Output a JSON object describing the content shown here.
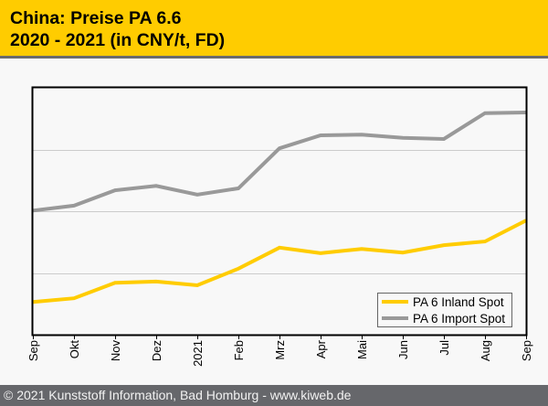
{
  "header": {
    "title_line1": "China: Preise PA 6.6",
    "title_line2": "2020 - 2021 (in CNY/t, FD)"
  },
  "footer": {
    "text": "© 2021 Kunststoff Information, Bad Homburg - www.kiweb.de"
  },
  "colors": {
    "header_bg": "#ffcc00",
    "footer_bg": "#66676b",
    "inland": "#ffcc00",
    "import": "#999999",
    "grid": "#cccccc"
  },
  "chart_data": {
    "type": "line",
    "title": "China: Preise PA 6.6 2020 - 2021 (in CNY/t, FD)",
    "xlabel": "",
    "ylabel": "",
    "y_axis_labels_shown": false,
    "y_units_note": "relative scale (no y tick labels shown); gridlines at 1, 2, 3",
    "ylim": [
      0,
      4
    ],
    "grid": true,
    "legend_position": "bottom-right",
    "categories": [
      "Sep",
      "Okt",
      "Nov",
      "Dez",
      "2021",
      "Feb",
      "Mrz",
      "Apr",
      "Mai",
      "Jun",
      "Jul",
      "Aug",
      "Sep"
    ],
    "series": [
      {
        "name": "PA 6 Inland Spot",
        "color": "#ffcc00",
        "values": [
          0.53,
          0.59,
          0.84,
          0.86,
          0.8,
          1.07,
          1.41,
          1.32,
          1.39,
          1.33,
          1.45,
          1.51,
          1.85
        ]
      },
      {
        "name": "PA 6 Import Spot",
        "color": "#999999",
        "values": [
          2.01,
          2.09,
          2.34,
          2.41,
          2.27,
          2.37,
          3.02,
          3.23,
          3.24,
          3.19,
          3.17,
          3.59,
          3.6
        ]
      }
    ]
  }
}
